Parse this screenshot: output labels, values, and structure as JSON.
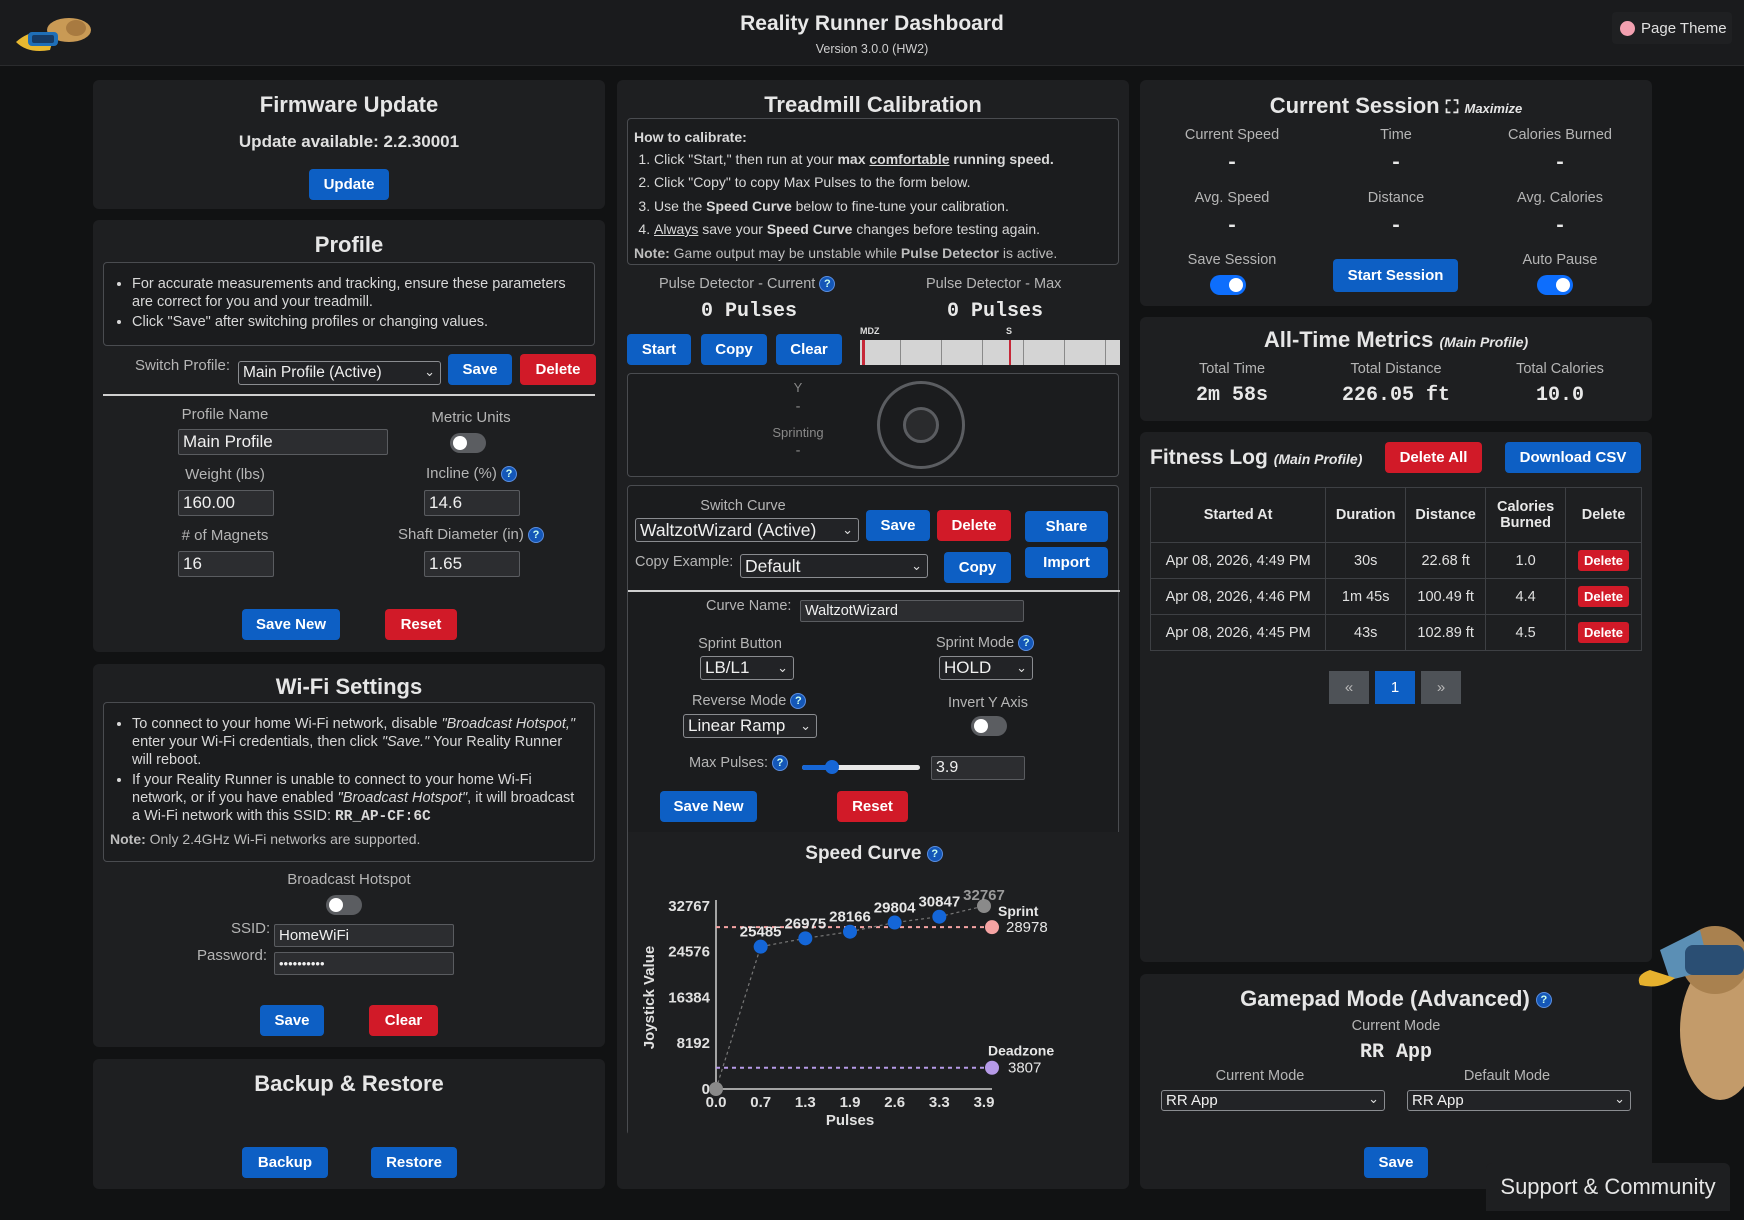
{
  "header": {
    "title": "Reality Runner Dashboard",
    "version": "Version 3.0.0 (HW2)",
    "theme_button": "Page Theme"
  },
  "firmware": {
    "title": "Firmware Update",
    "available": "Update available: 2.2.30001",
    "update_button": "Update"
  },
  "profile": {
    "title": "Profile",
    "notes": [
      "For accurate measurements and tracking, ensure these parameters are correct for you and your treadmill.",
      "Click \"Save\" after switching profiles or changing values."
    ],
    "switch_label": "Switch Profile:",
    "switch_value": "Main Profile (Active)",
    "save": "Save",
    "delete": "Delete",
    "name_label": "Profile Name",
    "name_value": "Main Profile",
    "metric_label": "Metric Units",
    "weight_label": "Weight (lbs)",
    "weight_value": "160.00",
    "incline_label": "Incline (%)",
    "incline_value": "14.6",
    "magnets_label": "# of Magnets",
    "magnets_value": "16",
    "shaft_label": "Shaft Diameter (in)",
    "shaft_value": "1.65",
    "save_new": "Save New",
    "reset": "Reset"
  },
  "wifi": {
    "title": "Wi-Fi Settings",
    "note1_a": "To connect to your home Wi-Fi network, disable ",
    "note1_b": "\"Broadcast Hotspot,\"",
    "note1_c": " enter your Wi-Fi credentials, then click ",
    "note1_d": "\"Save.\"",
    "note1_e": " Your Reality Runner will reboot.",
    "note2_a": "If your Reality Runner is unable to connect to your home Wi-Fi network, or if you have enabled ",
    "note2_b": "\"Broadcast Hotspot\"",
    "note2_c": ", it will broadcast a Wi-Fi network with this SSID: ",
    "note2_ssid": "RR_AP-CF:6C",
    "note_label": "Note:",
    "note_text": " Only 2.4GHz Wi-Fi networks are supported.",
    "hotspot_label": "Broadcast Hotspot",
    "ssid_label": "SSID:",
    "ssid_value": "HomeWiFi",
    "password_label": "Password:",
    "password_value": "••••••••••",
    "save": "Save",
    "clear": "Clear"
  },
  "backup": {
    "title": "Backup & Restore",
    "backup": "Backup",
    "restore": "Restore"
  },
  "calibration": {
    "title": "Treadmill Calibration",
    "how_title": "How to calibrate:",
    "step1_a": "Click \"Start,\" then run at your ",
    "step1_b": "max",
    "step1_c": "comfortable",
    "step1_d": " running speed.",
    "step2": "Click \"Copy\" to copy Max Pulses to the form below.",
    "step3_a": "Use the ",
    "step3_b": "Speed Curve",
    "step3_c": " below to fine-tune your calibration.",
    "step4_a": "Always",
    "step4_b": " save your ",
    "step4_c": "Speed Curve",
    "step4_d": " changes before testing again.",
    "note_label": "Note:",
    "note_a": " Game output may be unstable while ",
    "note_b": "Pulse Detector",
    "note_c": " is active.",
    "pd_current_label": "Pulse Detector - Current",
    "pd_current_value": "0 Pulses",
    "pd_max_label": "Pulse Detector - Max",
    "pd_max_value": "0 Pulses",
    "start": "Start",
    "copy": "Copy",
    "clear": "Clear",
    "bar_marker_1": "MDZ",
    "bar_marker_2": "S",
    "joy_y": "Y",
    "joy_dash1": "-",
    "joy_sprinting": "Sprinting",
    "joy_dash2": "-",
    "switch_curve_label": "Switch Curve",
    "curve_value": "WaltzotWizard (Active)",
    "save": "Save",
    "delete": "Delete",
    "share": "Share",
    "copy_example_label": "Copy Example:",
    "copy_example_value": "Default",
    "copy_btn": "Copy",
    "import": "Import",
    "curve_name_label": "Curve Name:",
    "curve_name_value": "WaltzotWizard",
    "sprint_button_label": "Sprint Button",
    "sprint_button_value": "LB/L1",
    "sprint_mode_label": "Sprint Mode",
    "sprint_mode_value": "HOLD",
    "reverse_mode_label": "Reverse Mode",
    "reverse_mode_value": "Linear Ramp",
    "invert_label": "Invert Y Axis",
    "max_pulses_label": "Max Pulses:",
    "max_pulses_value": "3.9",
    "max_pulses_fraction": 0.25,
    "save_new": "Save New",
    "reset": "Reset"
  },
  "chart_data": {
    "type": "line",
    "title": "Speed Curve",
    "xlabel": "Pulses",
    "ylabel": "Joystick Value",
    "xlim": [
      0,
      3.9
    ],
    "ylim": [
      0,
      32767
    ],
    "x_ticks": [
      "0.0",
      "0.7",
      "1.3",
      "1.9",
      "2.6",
      "3.3",
      "3.9"
    ],
    "y_ticks": [
      "32767",
      "24576",
      "16384",
      "8192",
      "0"
    ],
    "series": [
      {
        "x": [
          0,
          0.65,
          1.3,
          1.95,
          2.6,
          3.25,
          3.9
        ],
        "y": [
          0,
          25485,
          26975,
          28166,
          29804,
          30847,
          32767
        ]
      }
    ],
    "sprint": {
      "label": "Sprint",
      "value": 28978
    },
    "deadzone": {
      "label": "Deadzone",
      "value": 3807
    },
    "max_label": "32767",
    "point_labels": [
      "25485",
      "26975",
      "28166",
      "29804",
      "30847"
    ],
    "colors": {
      "point": "#1466d8",
      "sprint": "#f5a3a3",
      "deadzone": "#b69ae8",
      "max": "#8a8a8a"
    }
  },
  "session": {
    "title": "Current Session",
    "maximize": "Maximize",
    "current_speed_label": "Current Speed",
    "current_speed": "-",
    "time_label": "Time",
    "time": "-",
    "calories_label": "Calories Burned",
    "calories": "-",
    "avg_speed_label": "Avg. Speed",
    "avg_speed": "-",
    "distance_label": "Distance",
    "distance": "-",
    "avg_calories_label": "Avg. Calories",
    "avg_calories": "-",
    "save_session_label": "Save Session",
    "start_session": "Start Session",
    "auto_pause_label": "Auto Pause"
  },
  "metrics": {
    "title": "All-Time Metrics",
    "subtitle": "(Main Profile)",
    "total_time_label": "Total Time",
    "total_time": "2m 58s",
    "total_distance_label": "Total Distance",
    "total_distance": "226.05 ft",
    "total_calories_label": "Total Calories",
    "total_calories": "10.0"
  },
  "fitness": {
    "title": "Fitness Log",
    "subtitle": "(Main Profile)",
    "delete_all": "Delete All",
    "download_csv": "Download CSV",
    "headers": [
      "Started At",
      "Duration",
      "Distance",
      "Calories Burned",
      "Delete"
    ],
    "rows": [
      {
        "started": "Apr 08, 2026, 4:49 PM",
        "duration": "30s",
        "distance": "22.68 ft",
        "calories": "1.0",
        "delete": "Delete"
      },
      {
        "started": "Apr 08, 2026, 4:46 PM",
        "duration": "1m 45s",
        "distance": "100.49 ft",
        "calories": "4.4",
        "delete": "Delete"
      },
      {
        "started": "Apr 08, 2026, 4:45 PM",
        "duration": "43s",
        "distance": "102.89 ft",
        "calories": "4.5",
        "delete": "Delete"
      }
    ],
    "pager_prev": "«",
    "pager_page": "1",
    "pager_next": "»"
  },
  "gamepad": {
    "title": "Gamepad Mode (Advanced)",
    "current_mode_label": "Current Mode",
    "current_mode_value": "RR App",
    "current_select_label": "Current Mode",
    "current_select_value": "RR App",
    "default_select_label": "Default Mode",
    "default_select_value": "RR App",
    "save": "Save"
  },
  "support": "Support & Community"
}
